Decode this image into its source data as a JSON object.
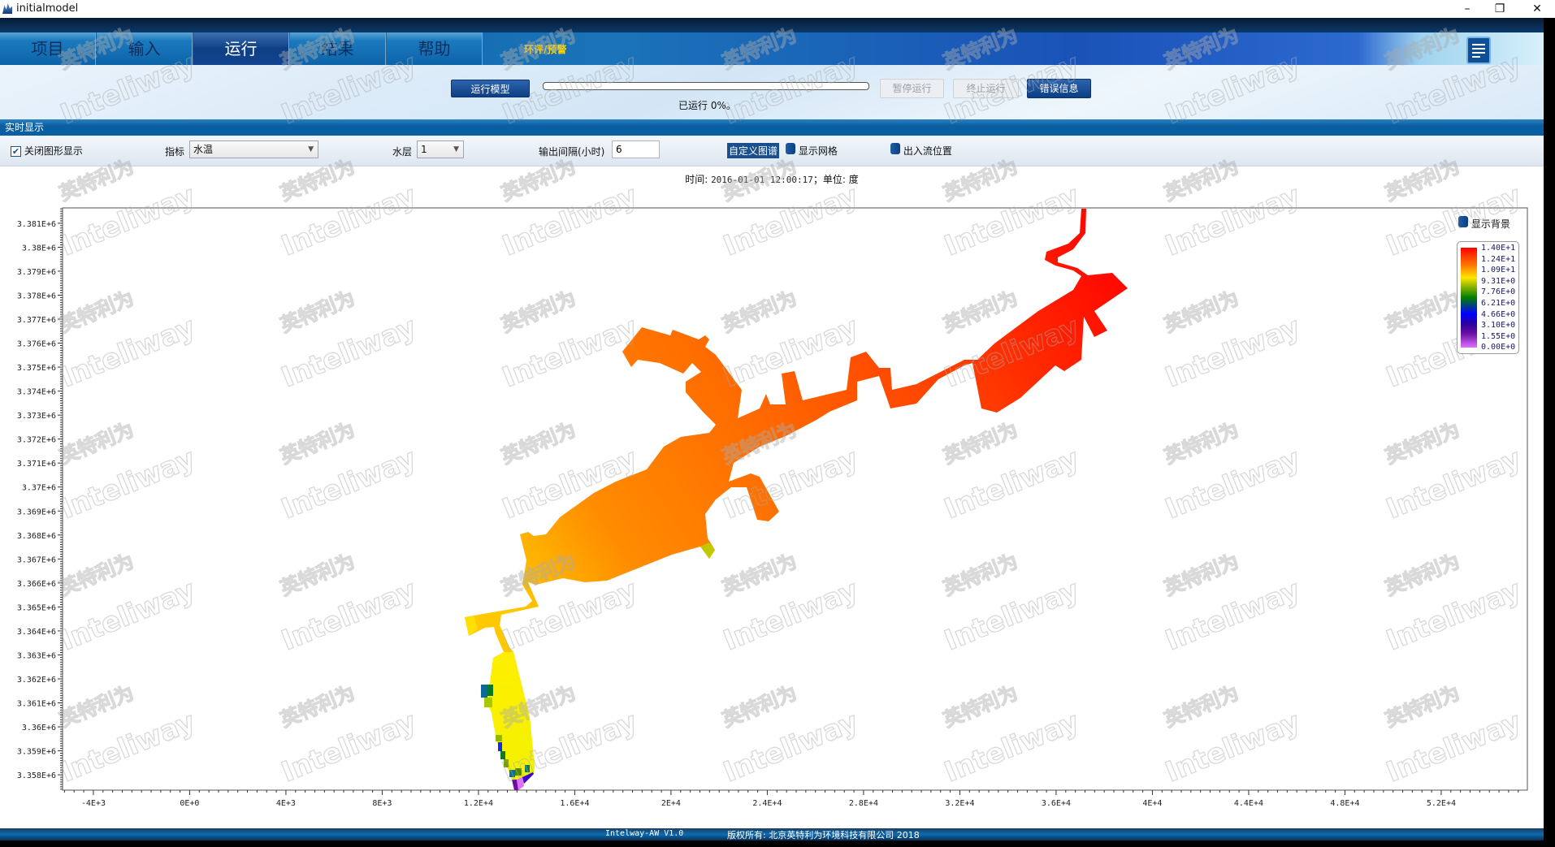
{
  "window": {
    "title": "initialmodel",
    "minimize": "–",
    "restore": "❐",
    "close": "✕"
  },
  "tabs": [
    {
      "label": "项目",
      "active": false
    },
    {
      "label": "输入",
      "active": false
    },
    {
      "label": "运行",
      "active": true
    },
    {
      "label": "结果",
      "active": false
    },
    {
      "label": "帮助",
      "active": false
    }
  ],
  "extra_tab": "环评/预警",
  "run": {
    "run_model": "运行模型",
    "progress_percent": 0,
    "progress_text": "已运行 0%。",
    "pause": "暂停运行",
    "stop": "终止运行",
    "errors": "错误信息"
  },
  "section_title": "实时显示",
  "controls": {
    "close_graphics": {
      "label": "关闭图形显示",
      "checked": true
    },
    "indicator_label": "指标",
    "indicator_value": "水温",
    "layer_label": "水层",
    "layer_value": "1",
    "interval_label": "输出间隔(小时)",
    "interval_value": "6",
    "custom_palette": "自定义图谱",
    "show_grid": "显示网格",
    "inout_position": "出入流位置"
  },
  "time_label": "时间:",
  "time_value": "2016-01-01 12:00:17",
  "unit_label": "；单位:",
  "unit_value": "度",
  "show_background": "显示背景",
  "legend": {
    "labels": [
      "1.40E+1",
      "1.24E+1",
      "1.09E+1",
      "9.31E+0",
      "7.76E+0",
      "6.21E+0",
      "4.66E+0",
      "3.10E+0",
      "1.55E+0",
      "0.00E+0"
    ],
    "colors": [
      "#ff0000",
      "#ff7a00",
      "#ffe600",
      "#008000",
      "#0000ff",
      "#e070ff"
    ]
  },
  "axes": {
    "x_range": [
      -5280,
      55580
    ],
    "y_range": [
      3357360,
      3381640
    ],
    "x_ticks": [
      {
        "v": -4000,
        "label": "-4E+3"
      },
      {
        "v": 0,
        "label": "0E+0"
      },
      {
        "v": 4000,
        "label": "4E+3"
      },
      {
        "v": 8000,
        "label": "8E+3"
      },
      {
        "v": 12000,
        "label": "1.2E+4"
      },
      {
        "v": 16000,
        "label": "1.6E+4"
      },
      {
        "v": 20000,
        "label": "2E+4"
      },
      {
        "v": 24000,
        "label": "2.4E+4"
      },
      {
        "v": 28000,
        "label": "2.8E+4"
      },
      {
        "v": 32000,
        "label": "3.2E+4"
      },
      {
        "v": 36000,
        "label": "3.6E+4"
      },
      {
        "v": 40000,
        "label": "4E+4"
      },
      {
        "v": 44000,
        "label": "4.4E+4"
      },
      {
        "v": 48000,
        "label": "4.8E+4"
      },
      {
        "v": 52000,
        "label": "5.2E+4"
      }
    ],
    "y_ticks": [
      {
        "v": 3381000,
        "label": "3.381E+6"
      },
      {
        "v": 3380000,
        "label": "3.38E+6"
      },
      {
        "v": 3379000,
        "label": "3.379E+6"
      },
      {
        "v": 3378000,
        "label": "3.378E+6"
      },
      {
        "v": 3377000,
        "label": "3.377E+6"
      },
      {
        "v": 3376000,
        "label": "3.376E+6"
      },
      {
        "v": 3375000,
        "label": "3.375E+6"
      },
      {
        "v": 3374000,
        "label": "3.374E+6"
      },
      {
        "v": 3373000,
        "label": "3.373E+6"
      },
      {
        "v": 3372000,
        "label": "3.372E+6"
      },
      {
        "v": 3371000,
        "label": "3.371E+6"
      },
      {
        "v": 3370000,
        "label": "3.37E+6"
      },
      {
        "v": 3369000,
        "label": "3.369E+6"
      },
      {
        "v": 3368000,
        "label": "3.368E+6"
      },
      {
        "v": 3367000,
        "label": "3.367E+6"
      },
      {
        "v": 3366000,
        "label": "3.366E+6"
      },
      {
        "v": 3365000,
        "label": "3.365E+6"
      },
      {
        "v": 3364000,
        "label": "3.364E+6"
      },
      {
        "v": 3363000,
        "label": "3.363E+6"
      },
      {
        "v": 3362000,
        "label": "3.362E+6"
      },
      {
        "v": 3361000,
        "label": "3.361E+6"
      },
      {
        "v": 3360000,
        "label": "3.36E+6"
      },
      {
        "v": 3359000,
        "label": "3.359E+6"
      },
      {
        "v": 3358000,
        "label": "3.358E+6"
      }
    ]
  },
  "watermark": [
    "英特利为",
    "Inteliway"
  ],
  "footer": {
    "version": "Intelway-AW  V1.0",
    "copyright": "版权所有: 北京英特利为环境科技有限公司 2018"
  }
}
